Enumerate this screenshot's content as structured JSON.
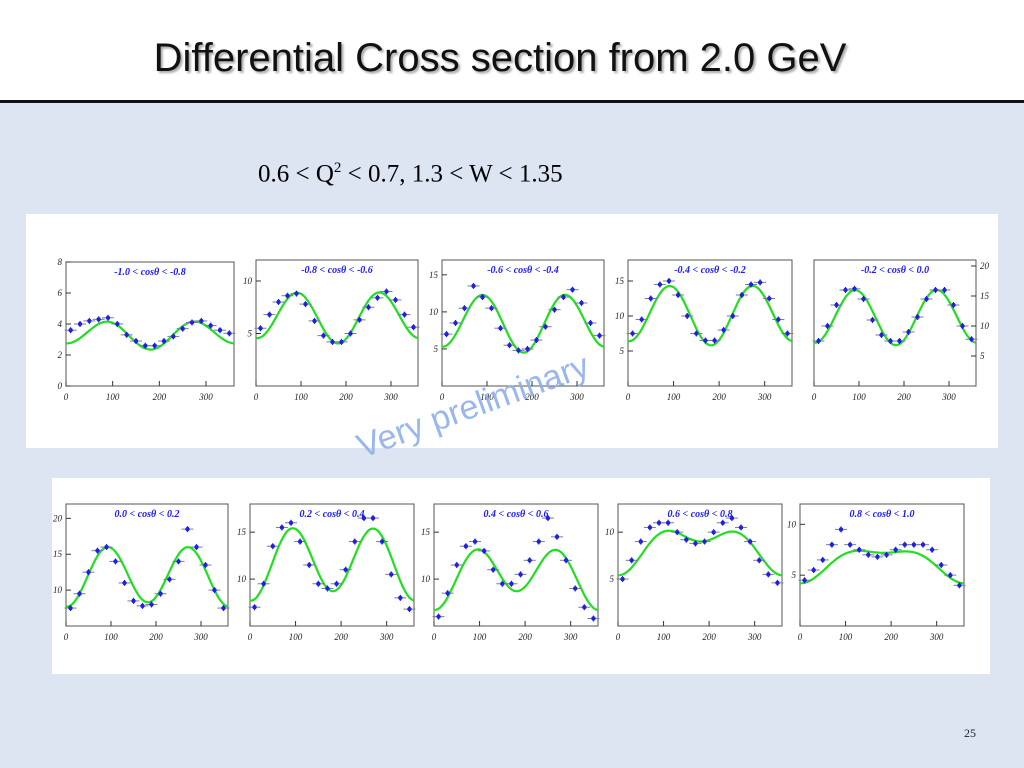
{
  "title": "Differential Cross section from 2.0 GeV",
  "subtitle": {
    "part1": "0.6 < Q",
    "sup": "2",
    "part2": " < 0.7, 1.3 < W < 1.35"
  },
  "watermark": "Very preliminary",
  "page_number": "25",
  "colors": {
    "fit_curve": "#22dd22",
    "data_points": "#2020e0",
    "panel_label": "#1a1aee"
  },
  "chart_data": [
    {
      "type": "scatter",
      "title": "-1.0 < cosθ < -0.8",
      "xticks": [
        "0",
        "100",
        "200",
        "300"
      ],
      "yticks": [
        "0",
        "2",
        "4",
        "6",
        "8"
      ],
      "xlim": [
        0,
        360
      ],
      "ylim": [
        0,
        8
      ],
      "x": [
        10,
        30,
        50,
        70,
        90,
        110,
        130,
        150,
        170,
        190,
        210,
        230,
        250,
        270,
        290,
        310,
        330,
        350
      ],
      "y": [
        3.6,
        4.0,
        4.2,
        4.3,
        4.4,
        4.0,
        3.3,
        2.9,
        2.6,
        2.6,
        2.9,
        3.2,
        3.7,
        4.1,
        4.2,
        3.9,
        3.6,
        3.4
      ],
      "fit": {
        "c": 3.35,
        "a": 0.8,
        "b": 0.2,
        "d": -3
      }
    },
    {
      "type": "scatter",
      "title": "-0.8 < cosθ < -0.6",
      "xticks": [
        "0",
        "100",
        "200",
        "300"
      ],
      "yticks": [
        "5",
        "10"
      ],
      "xlim": [
        0,
        360
      ],
      "ylim": [
        0,
        12
      ],
      "x": [
        10,
        30,
        50,
        70,
        90,
        110,
        130,
        150,
        170,
        190,
        210,
        230,
        250,
        270,
        290,
        310,
        330,
        350
      ],
      "y": [
        5.5,
        6.8,
        8.0,
        8.6,
        8.8,
        7.8,
        6.2,
        4.8,
        4.2,
        4.2,
        5.0,
        6.3,
        7.5,
        8.4,
        9.0,
        8.2,
        6.8,
        5.6
      ],
      "fit": {
        "c": 6.6,
        "a": 2.3,
        "b": 0.25,
        "d": -5
      }
    },
    {
      "type": "scatter",
      "title": "-0.6 < cosθ < -0.4",
      "xticks": [
        "0",
        "100",
        "200",
        "300"
      ],
      "yticks": [
        "5",
        "10",
        "15"
      ],
      "xlim": [
        0,
        360
      ],
      "ylim": [
        0,
        17
      ],
      "x": [
        10,
        30,
        50,
        70,
        90,
        110,
        130,
        150,
        170,
        190,
        210,
        230,
        250,
        270,
        290,
        310,
        330,
        350
      ],
      "y": [
        7.0,
        8.5,
        10.5,
        13.5,
        12.0,
        10.5,
        7.8,
        5.5,
        4.8,
        5.0,
        6.2,
        8.0,
        10.3,
        12.0,
        13.0,
        11.2,
        8.5,
        6.8
      ],
      "fit": {
        "c": 8.6,
        "a": 3.7,
        "b": 0.4,
        "d": -3
      }
    },
    {
      "type": "scatter",
      "title": "-0.4 < cosθ < -0.2",
      "xticks": [
        "0",
        "100",
        "200",
        "300"
      ],
      "yticks": [
        "5",
        "10",
        "15"
      ],
      "xlim": [
        0,
        360
      ],
      "ylim": [
        0,
        18
      ],
      "x": [
        10,
        30,
        50,
        70,
        90,
        110,
        130,
        150,
        170,
        190,
        210,
        230,
        250,
        270,
        290,
        310,
        330,
        350
      ],
      "y": [
        7.5,
        9.5,
        12.5,
        14.5,
        15.0,
        13.0,
        10.0,
        7.5,
        6.5,
        6.5,
        8.0,
        10.0,
        13.0,
        14.5,
        14.8,
        12.5,
        9.5,
        7.5
      ],
      "fit": {
        "c": 10.2,
        "a": 4.1,
        "b": 0.3,
        "d": -5
      }
    },
    {
      "type": "scatter",
      "title": "-0.2 < cosθ < 0.0",
      "xticks": [
        "0",
        "100",
        "200",
        "300"
      ],
      "yticks": [
        "5",
        "10",
        "15",
        "20"
      ],
      "xlim": [
        0,
        360
      ],
      "ylim": [
        0,
        21
      ],
      "x": [
        10,
        30,
        50,
        70,
        90,
        110,
        130,
        150,
        170,
        190,
        210,
        230,
        250,
        270,
        290,
        310,
        330,
        350
      ],
      "y": [
        7.5,
        10.0,
        13.5,
        16.0,
        16.2,
        14.5,
        11.0,
        8.5,
        7.5,
        7.5,
        9.0,
        11.5,
        14.5,
        16.0,
        16.0,
        13.5,
        10.0,
        7.8
      ],
      "fit": {
        "c": 11.5,
        "a": 4.5,
        "b": 0.2,
        "d": -4
      }
    },
    {
      "type": "scatter",
      "title": "0.0 < cosθ < 0.2",
      "xticks": [
        "0",
        "100",
        "200",
        "300"
      ],
      "yticks": [
        "10",
        "15",
        "20"
      ],
      "xlim": [
        0,
        360
      ],
      "ylim": [
        5,
        22
      ],
      "x": [
        10,
        30,
        50,
        70,
        90,
        110,
        130,
        150,
        170,
        190,
        210,
        230,
        250,
        270,
        290,
        310,
        330,
        350
      ],
      "y": [
        7.5,
        9.5,
        12.5,
        15.5,
        16.0,
        14.0,
        11.0,
        8.5,
        7.8,
        8.0,
        9.5,
        11.5,
        14.0,
        18.5,
        16.0,
        13.5,
        10.0,
        7.5
      ],
      "fit": {
        "c": 12.0,
        "a": 4.0,
        "b": -0.3,
        "d": -4
      }
    },
    {
      "type": "scatter",
      "title": "0.2 < cosθ < 0.4",
      "xticks": [
        "0",
        "100",
        "200",
        "300"
      ],
      "yticks": [
        "10",
        "15"
      ],
      "xlim": [
        0,
        360
      ],
      "ylim": [
        5,
        18
      ],
      "x": [
        10,
        30,
        50,
        70,
        90,
        110,
        130,
        150,
        170,
        190,
        210,
        230,
        250,
        270,
        290,
        310,
        330,
        350
      ],
      "y": [
        7.0,
        9.5,
        13.5,
        15.5,
        16.0,
        14.0,
        11.5,
        9.5,
        9.0,
        9.5,
        11.0,
        14.0,
        16.5,
        16.5,
        14.0,
        10.5,
        8.0,
        6.8
      ],
      "fit": {
        "c": 11.8,
        "a": 3.6,
        "b": -0.5,
        "d": -4
      }
    },
    {
      "type": "scatter",
      "title": "0.4 < cosθ < 0.6",
      "xticks": [
        "0",
        "100",
        "200",
        "300"
      ],
      "yticks": [
        "10",
        "15"
      ],
      "xlim": [
        0,
        360
      ],
      "ylim": [
        5,
        18
      ],
      "x": [
        10,
        30,
        50,
        70,
        90,
        110,
        130,
        150,
        170,
        190,
        210,
        230,
        250,
        270,
        290,
        310,
        330,
        350
      ],
      "y": [
        6.0,
        8.5,
        11.5,
        13.5,
        14.0,
        13.0,
        11.0,
        9.5,
        9.5,
        10.5,
        12.0,
        14.0,
        16.5,
        14.5,
        12.0,
        9.0,
        7.0,
        5.8
      ],
      "fit": {
        "c": 10.4,
        "a": 2.7,
        "b": -1.0,
        "d": -3
      }
    },
    {
      "type": "scatter",
      "title": "0.6 < cosθ < 0.8",
      "xticks": [
        "0",
        "100",
        "200",
        "300"
      ],
      "yticks": [
        "5",
        "10"
      ],
      "xlim": [
        0,
        360
      ],
      "ylim": [
        0,
        13
      ],
      "x": [
        10,
        30,
        50,
        70,
        90,
        110,
        130,
        150,
        170,
        190,
        210,
        230,
        250,
        270,
        290,
        310,
        330,
        350
      ],
      "y": [
        5.0,
        7.0,
        9.0,
        10.5,
        11.0,
        11.0,
        10.0,
        9.2,
        8.8,
        9.0,
        10.0,
        11.0,
        11.5,
        10.5,
        9.0,
        7.0,
        5.5,
        4.6
      ],
      "fit": {
        "c": 8.5,
        "a": 1.3,
        "b": -1.8,
        "d": -3
      }
    },
    {
      "type": "scatter",
      "title": "0.8 < cosθ < 1.0",
      "xticks": [
        "0",
        "100",
        "200",
        "300"
      ],
      "yticks": [
        "5",
        "10"
      ],
      "xlim": [
        0,
        360
      ],
      "ylim": [
        0,
        12
      ],
      "x": [
        10,
        30,
        50,
        70,
        90,
        110,
        130,
        150,
        170,
        190,
        210,
        230,
        250,
        270,
        290,
        310,
        330,
        350
      ],
      "y": [
        4.5,
        5.5,
        6.5,
        8.0,
        9.5,
        8.0,
        7.5,
        7.0,
        6.8,
        7.0,
        7.5,
        8.0,
        8.0,
        8.0,
        7.5,
        6.0,
        5.0,
        4.0
      ],
      "fit": {
        "c": 6.3,
        "a": 0.6,
        "b": -1.5,
        "d": -3
      }
    }
  ]
}
